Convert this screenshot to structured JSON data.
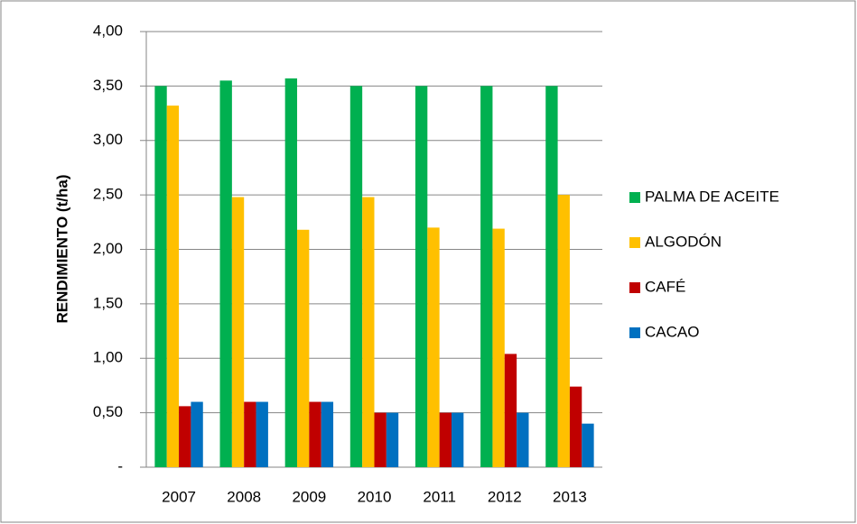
{
  "chart_data": {
    "type": "bar",
    "y_label": "RENDIMIENTO (t/ha)",
    "categories": [
      "2007",
      "2008",
      "2009",
      "2010",
      "2011",
      "2012",
      "2013"
    ],
    "series": [
      {
        "name": "PALMA DE ACEITE",
        "color": "#00b050",
        "values": [
          3.5,
          3.55,
          3.57,
          3.5,
          3.5,
          3.5,
          3.5
        ]
      },
      {
        "name": "ALGODÓN",
        "color": "#ffc000",
        "values": [
          3.32,
          2.48,
          2.18,
          2.48,
          2.2,
          2.19,
          2.5
        ]
      },
      {
        "name": "CAFÉ",
        "color": "#c00000",
        "values": [
          0.56,
          0.6,
          0.6,
          0.5,
          0.5,
          1.04,
          0.74
        ]
      },
      {
        "name": "CACAO",
        "color": "#0070c0",
        "values": [
          0.6,
          0.6,
          0.6,
          0.5,
          0.5,
          0.5,
          0.4
        ]
      }
    ],
    "ylim": [
      0,
      4
    ],
    "yticks": [
      {
        "value": 0,
        "label": "-"
      },
      {
        "value": 0.5,
        "label": "0,50"
      },
      {
        "value": 1,
        "label": "1,00"
      },
      {
        "value": 1.5,
        "label": "1,50"
      },
      {
        "value": 2,
        "label": "2,00"
      },
      {
        "value": 2.5,
        "label": "2,50"
      },
      {
        "value": 3,
        "label": "3,00"
      },
      {
        "value": 3.5,
        "label": "3,50"
      },
      {
        "value": 4,
        "label": "4,00"
      }
    ],
    "grid": true,
    "legend": "right"
  }
}
